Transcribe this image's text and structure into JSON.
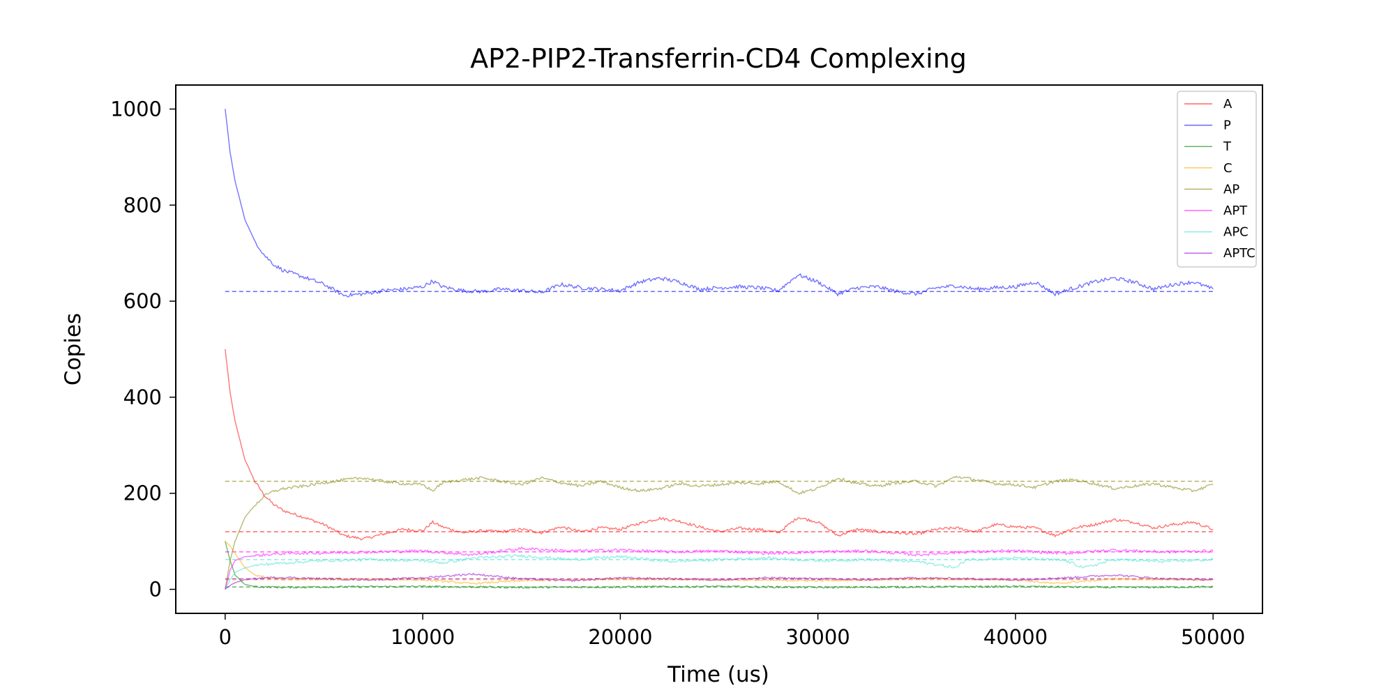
{
  "chart_data": {
    "type": "line",
    "title": "AP2-PIP2-Transferrin-CD4 Complexing",
    "xlabel": "Time (us)",
    "ylabel": "Copies",
    "xlim": [
      -2500,
      52500
    ],
    "ylim": [
      -50,
      1050
    ],
    "xticks": [
      0,
      10000,
      20000,
      30000,
      40000,
      50000
    ],
    "yticks": [
      0,
      200,
      400,
      600,
      800,
      1000
    ],
    "grid": false,
    "legend_position": "top-right",
    "series": [
      {
        "name": "A",
        "color": "#ff0000",
        "equilibrium": 120,
        "x": [
          0,
          250,
          500,
          1000,
          1500,
          2000,
          2500,
          3000,
          4000,
          5000,
          6000,
          7000,
          8000,
          9000,
          10000,
          10500,
          11000,
          12000,
          13000,
          14000,
          15000,
          16000,
          17000,
          18000,
          19000,
          20000,
          21000,
          22000,
          23000,
          24000,
          25000,
          26000,
          27000,
          28000,
          29000,
          30000,
          31000,
          32000,
          33000,
          34000,
          35000,
          36000,
          37000,
          38000,
          39000,
          40000,
          41000,
          42000,
          43000,
          44000,
          45000,
          46000,
          47000,
          48000,
          49000,
          50000
        ],
        "y": [
          500,
          410,
          350,
          270,
          225,
          195,
          175,
          163,
          150,
          135,
          112,
          105,
          115,
          125,
          122,
          140,
          130,
          118,
          122,
          120,
          125,
          118,
          130,
          120,
          128,
          125,
          138,
          148,
          142,
          130,
          120,
          127,
          125,
          118,
          150,
          140,
          112,
          125,
          120,
          118,
          115,
          125,
          128,
          120,
          135,
          130,
          128,
          112,
          128,
          135,
          145,
          140,
          128,
          135,
          140,
          125
        ]
      },
      {
        "name": "P",
        "color": "#0000ff",
        "equilibrium": 620,
        "x": [
          0,
          250,
          500,
          1000,
          1500,
          2000,
          2500,
          3000,
          4000,
          5000,
          6000,
          7000,
          8000,
          9000,
          10000,
          10500,
          11000,
          12000,
          13000,
          14000,
          15000,
          16000,
          17000,
          18000,
          19000,
          20000,
          21000,
          22000,
          23000,
          24000,
          25000,
          26000,
          27000,
          28000,
          29000,
          30000,
          31000,
          32000,
          33000,
          34000,
          35000,
          36000,
          37000,
          38000,
          39000,
          40000,
          41000,
          42000,
          43000,
          44000,
          45000,
          46000,
          47000,
          48000,
          49000,
          50000
        ],
        "y": [
          1000,
          910,
          850,
          770,
          725,
          695,
          675,
          663,
          650,
          635,
          612,
          615,
          622,
          625,
          630,
          642,
          630,
          622,
          620,
          625,
          622,
          618,
          635,
          628,
          625,
          622,
          640,
          648,
          640,
          625,
          628,
          630,
          628,
          622,
          655,
          640,
          615,
          628,
          630,
          620,
          615,
          628,
          632,
          625,
          628,
          630,
          640,
          615,
          628,
          640,
          648,
          640,
          625,
          635,
          640,
          625
        ]
      },
      {
        "name": "T",
        "color": "#008000",
        "equilibrium": 5,
        "x": [
          0,
          250,
          500,
          1000,
          1500,
          2000,
          3000,
          5000,
          10000,
          15000,
          20000,
          25000,
          30000,
          35000,
          40000,
          45000,
          50000
        ],
        "y": [
          100,
          60,
          30,
          10,
          6,
          5,
          4,
          5,
          6,
          4,
          5,
          6,
          4,
          5,
          6,
          4,
          5
        ]
      },
      {
        "name": "C",
        "color": "#ffa500",
        "equilibrium": 20,
        "x": [
          0,
          250,
          500,
          1000,
          1500,
          2000,
          3000,
          5000,
          10000,
          12500,
          15000,
          20000,
          25000,
          30000,
          35000,
          40000,
          42000,
          45000,
          50000
        ],
        "y": [
          100,
          90,
          75,
          45,
          30,
          25,
          20,
          22,
          20,
          12,
          18,
          22,
          20,
          18,
          22,
          20,
          12,
          22,
          20
        ]
      },
      {
        "name": "AP",
        "color": "#808000",
        "equilibrium": 225,
        "x": [
          0,
          250,
          500,
          1000,
          1500,
          2000,
          2500,
          3000,
          4000,
          5000,
          6000,
          7000,
          8000,
          9000,
          10000,
          10500,
          11000,
          12000,
          13000,
          14000,
          15000,
          16000,
          17000,
          18000,
          19000,
          20000,
          21000,
          22000,
          23000,
          24000,
          25000,
          26000,
          27000,
          28000,
          29000,
          30000,
          31000,
          32000,
          33000,
          34000,
          35000,
          36000,
          37000,
          38000,
          39000,
          40000,
          41000,
          42000,
          43000,
          44000,
          45000,
          46000,
          47000,
          48000,
          49000,
          50000
        ],
        "y": [
          0,
          60,
          100,
          150,
          175,
          195,
          205,
          210,
          215,
          222,
          228,
          232,
          225,
          220,
          218,
          205,
          222,
          228,
          232,
          225,
          218,
          232,
          222,
          215,
          225,
          212,
          205,
          210,
          220,
          215,
          218,
          222,
          220,
          225,
          200,
          210,
          232,
          220,
          215,
          222,
          225,
          215,
          235,
          228,
          220,
          218,
          212,
          225,
          228,
          220,
          210,
          215,
          220,
          212,
          205,
          218
        ]
      },
      {
        "name": "APT",
        "color": "#ff00ff",
        "equilibrium": 78,
        "x": [
          0,
          250,
          500,
          1000,
          1500,
          2000,
          3000,
          5000,
          7500,
          10000,
          12500,
          15000,
          17500,
          20000,
          22500,
          25000,
          27500,
          30000,
          32500,
          35000,
          37500,
          40000,
          42500,
          45000,
          47500,
          50000
        ],
        "y": [
          0,
          40,
          60,
          68,
          70,
          72,
          75,
          76,
          78,
          80,
          72,
          85,
          80,
          82,
          78,
          80,
          75,
          78,
          80,
          72,
          78,
          80,
          75,
          82,
          78,
          80
        ]
      },
      {
        "name": "APC",
        "color": "#40e0d0",
        "equilibrium": 62,
        "x": [
          0,
          250,
          500,
          1000,
          1500,
          2000,
          3000,
          5000,
          7500,
          10000,
          11000,
          12500,
          15000,
          17500,
          20000,
          22500,
          25000,
          27500,
          30000,
          32500,
          35000,
          37000,
          37500,
          40000,
          42500,
          43500,
          45000,
          47500,
          50000
        ],
        "y": [
          0,
          20,
          35,
          45,
          50,
          52,
          55,
          60,
          62,
          60,
          55,
          65,
          70,
          62,
          68,
          58,
          62,
          65,
          60,
          62,
          58,
          45,
          62,
          65,
          60,
          45,
          62,
          58,
          62
        ]
      },
      {
        "name": "APTC",
        "color": "#9400d3",
        "equilibrium": 22,
        "x": [
          0,
          250,
          500,
          1000,
          1500,
          2000,
          3000,
          5000,
          7500,
          10000,
          12500,
          15000,
          17500,
          20000,
          22500,
          25000,
          27500,
          30000,
          32500,
          35000,
          37500,
          40000,
          42500,
          45000,
          47500,
          50000
        ],
        "y": [
          0,
          8,
          14,
          20,
          22,
          24,
          25,
          22,
          20,
          24,
          32,
          22,
          18,
          24,
          22,
          20,
          24,
          22,
          20,
          24,
          22,
          20,
          24,
          30,
          22,
          20
        ]
      }
    ]
  }
}
